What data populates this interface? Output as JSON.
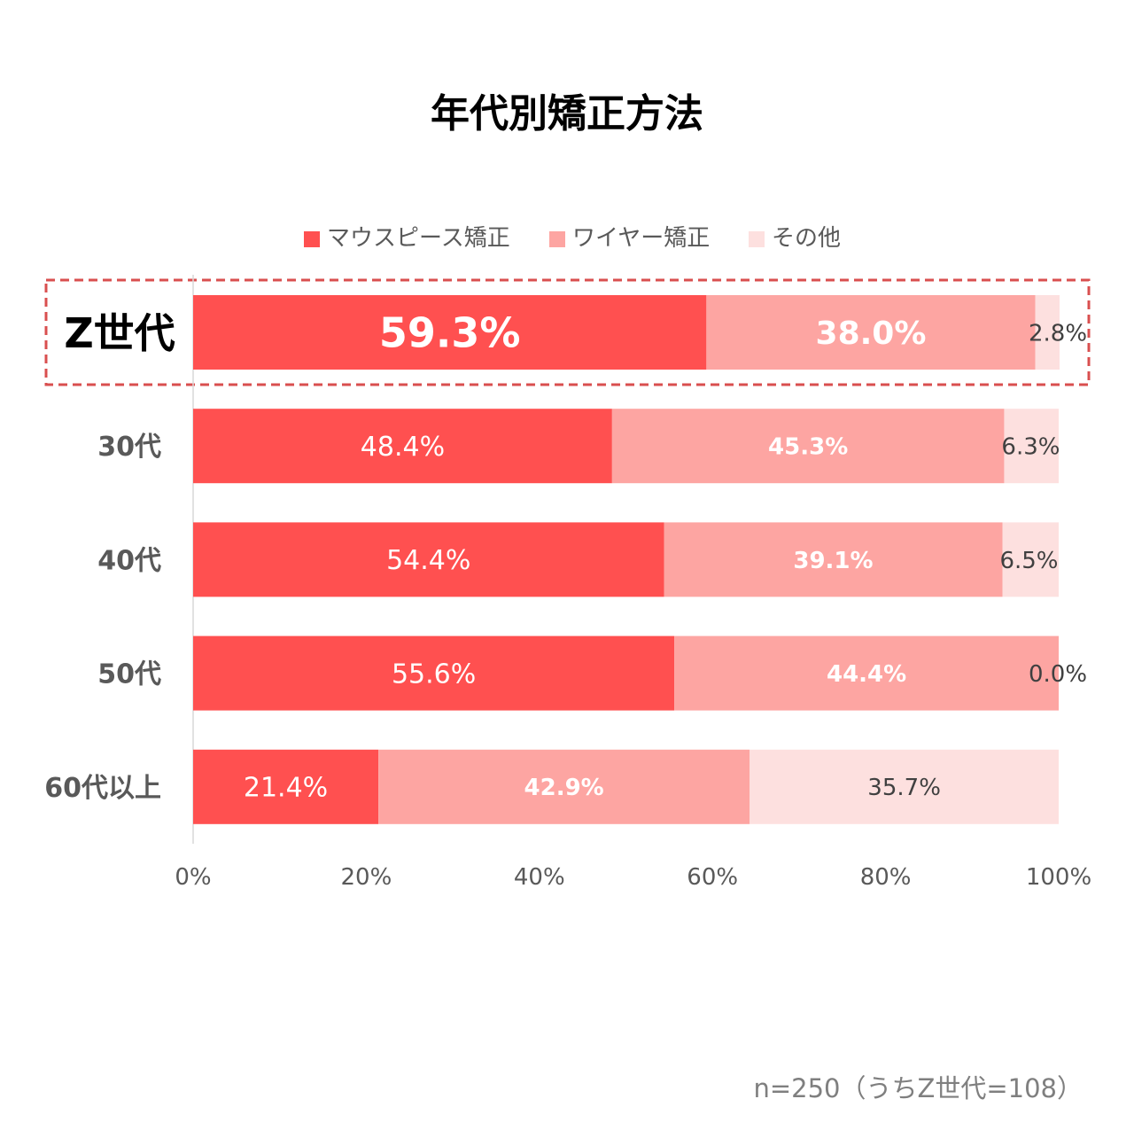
{
  "chart_data": {
    "type": "bar",
    "orientation": "horizontal",
    "stacked": "percent",
    "title": "年代別矯正方法",
    "categories": [
      "Z世代",
      "30代",
      "40代",
      "50代",
      "60代以上"
    ],
    "highlight_category": "Z世代",
    "series": [
      {
        "name": "マウスピース矯正",
        "color": "#ff5050",
        "values": [
          59.3,
          48.4,
          54.4,
          55.6,
          21.4
        ],
        "labels": [
          "59.3%",
          "48.4%",
          "54.4%",
          "55.6%",
          "21.4%"
        ]
      },
      {
        "name": "ワイヤー矯正",
        "color": "#fda5a2",
        "values": [
          38.0,
          45.3,
          39.1,
          44.4,
          42.9
        ],
        "labels": [
          "38.0%",
          "45.3%",
          "39.1%",
          "44.4%",
          "42.9%"
        ]
      },
      {
        "name": "その他",
        "color": "#fde0df",
        "values": [
          2.8,
          6.3,
          6.5,
          0.0,
          35.7
        ],
        "labels": [
          "2.8%",
          "6.3%",
          "6.5%",
          "0.0%",
          "35.7%"
        ]
      }
    ],
    "x_ticks": [
      "0%",
      "20%",
      "40%",
      "60%",
      "80%",
      "100%"
    ],
    "xlim": [
      0,
      100
    ],
    "legend_position": "top",
    "grid": false,
    "note": "n=250（うちZ世代=108）"
  }
}
